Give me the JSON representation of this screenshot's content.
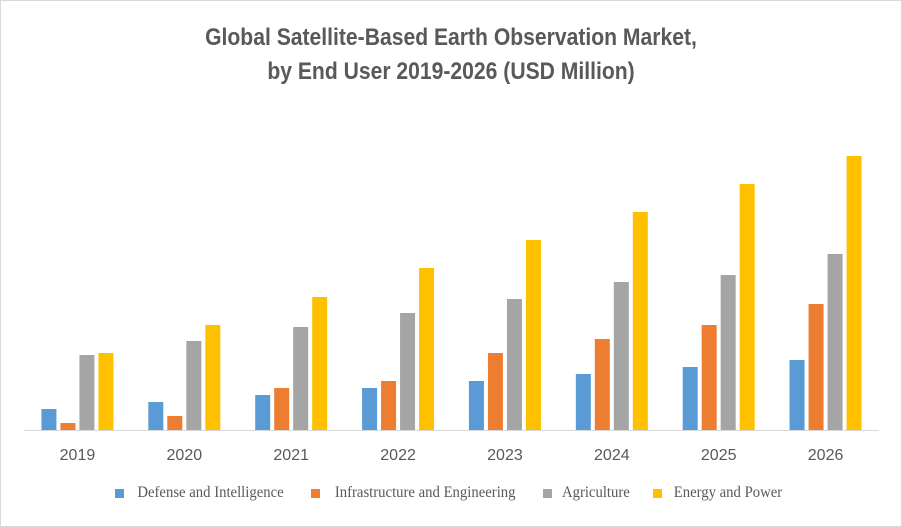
{
  "chart_data": {
    "type": "bar",
    "title": "Global Satellite-Based Earth Observation Market, by End User 2019-2026 (USD Million)",
    "title_lines": [
      "Global Satellite-Based Earth Observation Market,",
      "by End User 2019-2026 (USD Million)"
    ],
    "xlabel": "",
    "ylabel": "",
    "y_axis_visible": false,
    "value_note": "Relative magnitudes estimated from bar heights; no y-axis scale shown",
    "ylim": [
      0,
      280
    ],
    "grid": false,
    "legend_position": "bottom",
    "categories": [
      "2019",
      "2020",
      "2021",
      "2022",
      "2023",
      "2024",
      "2025",
      "2026"
    ],
    "series": [
      {
        "name": "Defense and Intelligence",
        "color": "#5b9bd5",
        "values": [
          21,
          28,
          35,
          42,
          49,
          56,
          63,
          70
        ]
      },
      {
        "name": "Infrastructure and Engineering",
        "color": "#ed7d31",
        "values": [
          7,
          14,
          42,
          49,
          77,
          91,
          105,
          126
        ]
      },
      {
        "name": "Agriculture",
        "color": "#a5a5a5",
        "values": [
          75,
          89,
          103,
          117,
          131,
          148,
          155,
          176
        ]
      },
      {
        "name": "Energy and Power",
        "color": "#ffc000",
        "values": [
          77,
          105,
          133,
          162,
          190,
          218,
          246,
          274
        ]
      }
    ]
  }
}
